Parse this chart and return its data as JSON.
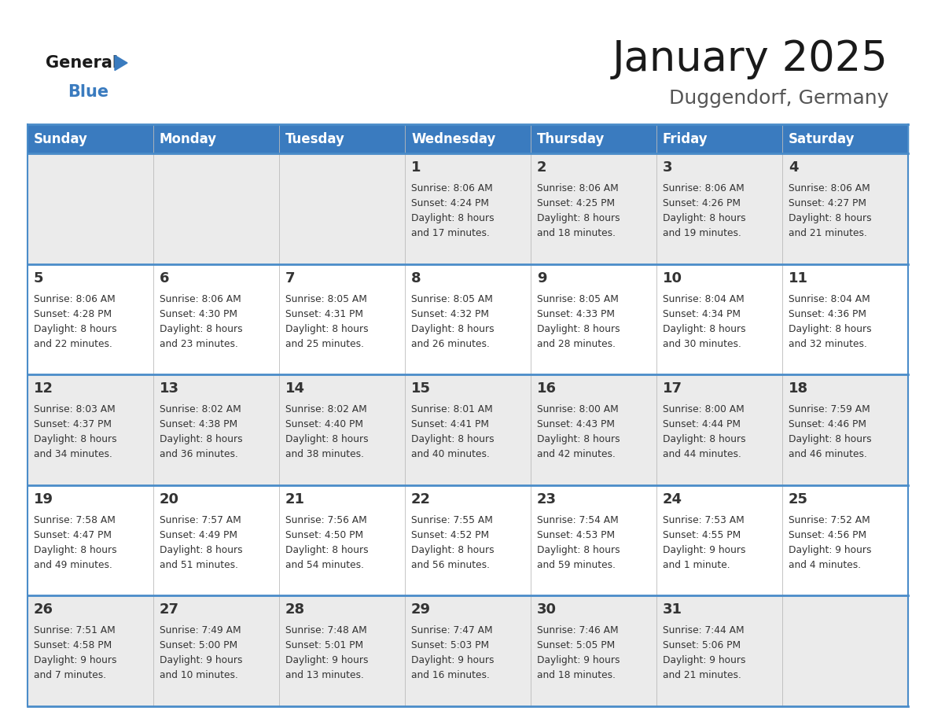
{
  "title": "January 2025",
  "subtitle": "Duggendorf, Germany",
  "days_of_week": [
    "Sunday",
    "Monday",
    "Tuesday",
    "Wednesday",
    "Thursday",
    "Friday",
    "Saturday"
  ],
  "header_bg": "#3A7BBF",
  "header_text": "#FFFFFF",
  "row_bg_odd": "#EBEBEB",
  "row_bg_even": "#FFFFFF",
  "divider_color": "#4A8CC9",
  "day_number_color": "#333333",
  "info_text_color": "#333333",
  "title_color": "#1a1a1a",
  "subtitle_color": "#555555",
  "logo_general_color": "#1a1a1a",
  "logo_blue_color": "#3A7BBF",
  "logo_triangle_color": "#3A7BBF",
  "calendar_data": [
    [
      {
        "day": null,
        "info": ""
      },
      {
        "day": null,
        "info": ""
      },
      {
        "day": null,
        "info": ""
      },
      {
        "day": 1,
        "info": "Sunrise: 8:06 AM\nSunset: 4:24 PM\nDaylight: 8 hours\nand 17 minutes."
      },
      {
        "day": 2,
        "info": "Sunrise: 8:06 AM\nSunset: 4:25 PM\nDaylight: 8 hours\nand 18 minutes."
      },
      {
        "day": 3,
        "info": "Sunrise: 8:06 AM\nSunset: 4:26 PM\nDaylight: 8 hours\nand 19 minutes."
      },
      {
        "day": 4,
        "info": "Sunrise: 8:06 AM\nSunset: 4:27 PM\nDaylight: 8 hours\nand 21 minutes."
      }
    ],
    [
      {
        "day": 5,
        "info": "Sunrise: 8:06 AM\nSunset: 4:28 PM\nDaylight: 8 hours\nand 22 minutes."
      },
      {
        "day": 6,
        "info": "Sunrise: 8:06 AM\nSunset: 4:30 PM\nDaylight: 8 hours\nand 23 minutes."
      },
      {
        "day": 7,
        "info": "Sunrise: 8:05 AM\nSunset: 4:31 PM\nDaylight: 8 hours\nand 25 minutes."
      },
      {
        "day": 8,
        "info": "Sunrise: 8:05 AM\nSunset: 4:32 PM\nDaylight: 8 hours\nand 26 minutes."
      },
      {
        "day": 9,
        "info": "Sunrise: 8:05 AM\nSunset: 4:33 PM\nDaylight: 8 hours\nand 28 minutes."
      },
      {
        "day": 10,
        "info": "Sunrise: 8:04 AM\nSunset: 4:34 PM\nDaylight: 8 hours\nand 30 minutes."
      },
      {
        "day": 11,
        "info": "Sunrise: 8:04 AM\nSunset: 4:36 PM\nDaylight: 8 hours\nand 32 minutes."
      }
    ],
    [
      {
        "day": 12,
        "info": "Sunrise: 8:03 AM\nSunset: 4:37 PM\nDaylight: 8 hours\nand 34 minutes."
      },
      {
        "day": 13,
        "info": "Sunrise: 8:02 AM\nSunset: 4:38 PM\nDaylight: 8 hours\nand 36 minutes."
      },
      {
        "day": 14,
        "info": "Sunrise: 8:02 AM\nSunset: 4:40 PM\nDaylight: 8 hours\nand 38 minutes."
      },
      {
        "day": 15,
        "info": "Sunrise: 8:01 AM\nSunset: 4:41 PM\nDaylight: 8 hours\nand 40 minutes."
      },
      {
        "day": 16,
        "info": "Sunrise: 8:00 AM\nSunset: 4:43 PM\nDaylight: 8 hours\nand 42 minutes."
      },
      {
        "day": 17,
        "info": "Sunrise: 8:00 AM\nSunset: 4:44 PM\nDaylight: 8 hours\nand 44 minutes."
      },
      {
        "day": 18,
        "info": "Sunrise: 7:59 AM\nSunset: 4:46 PM\nDaylight: 8 hours\nand 46 minutes."
      }
    ],
    [
      {
        "day": 19,
        "info": "Sunrise: 7:58 AM\nSunset: 4:47 PM\nDaylight: 8 hours\nand 49 minutes."
      },
      {
        "day": 20,
        "info": "Sunrise: 7:57 AM\nSunset: 4:49 PM\nDaylight: 8 hours\nand 51 minutes."
      },
      {
        "day": 21,
        "info": "Sunrise: 7:56 AM\nSunset: 4:50 PM\nDaylight: 8 hours\nand 54 minutes."
      },
      {
        "day": 22,
        "info": "Sunrise: 7:55 AM\nSunset: 4:52 PM\nDaylight: 8 hours\nand 56 minutes."
      },
      {
        "day": 23,
        "info": "Sunrise: 7:54 AM\nSunset: 4:53 PM\nDaylight: 8 hours\nand 59 minutes."
      },
      {
        "day": 24,
        "info": "Sunrise: 7:53 AM\nSunset: 4:55 PM\nDaylight: 9 hours\nand 1 minute."
      },
      {
        "day": 25,
        "info": "Sunrise: 7:52 AM\nSunset: 4:56 PM\nDaylight: 9 hours\nand 4 minutes."
      }
    ],
    [
      {
        "day": 26,
        "info": "Sunrise: 7:51 AM\nSunset: 4:58 PM\nDaylight: 9 hours\nand 7 minutes."
      },
      {
        "day": 27,
        "info": "Sunrise: 7:49 AM\nSunset: 5:00 PM\nDaylight: 9 hours\nand 10 minutes."
      },
      {
        "day": 28,
        "info": "Sunrise: 7:48 AM\nSunset: 5:01 PM\nDaylight: 9 hours\nand 13 minutes."
      },
      {
        "day": 29,
        "info": "Sunrise: 7:47 AM\nSunset: 5:03 PM\nDaylight: 9 hours\nand 16 minutes."
      },
      {
        "day": 30,
        "info": "Sunrise: 7:46 AM\nSunset: 5:05 PM\nDaylight: 9 hours\nand 18 minutes."
      },
      {
        "day": 31,
        "info": "Sunrise: 7:44 AM\nSunset: 5:06 PM\nDaylight: 9 hours\nand 21 minutes."
      },
      {
        "day": null,
        "info": ""
      }
    ]
  ]
}
